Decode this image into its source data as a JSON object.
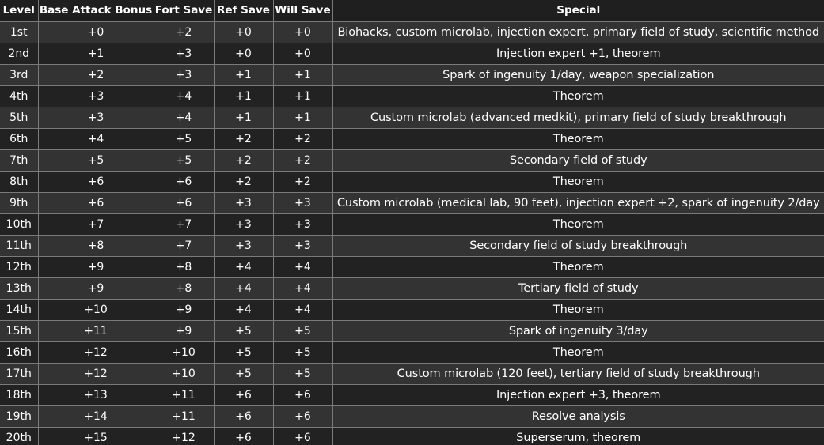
{
  "table": {
    "headers": [
      "Level",
      "Base Attack Bonus",
      "Fort Save",
      "Ref Save",
      "Will Save",
      "Special"
    ],
    "rows": [
      [
        "1st",
        "+0",
        "+2",
        "+0",
        "+0",
        "Biohacks, custom microlab, injection expert, primary field of study, scientific method"
      ],
      [
        "2nd",
        "+1",
        "+3",
        "+0",
        "+0",
        "Injection expert +1, theorem"
      ],
      [
        "3rd",
        "+2",
        "+3",
        "+1",
        "+1",
        "Spark of ingenuity 1/day, weapon specialization"
      ],
      [
        "4th",
        "+3",
        "+4",
        "+1",
        "+1",
        "Theorem"
      ],
      [
        "5th",
        "+3",
        "+4",
        "+1",
        "+1",
        "Custom microlab (advanced medkit), primary field of study breakthrough"
      ],
      [
        "6th",
        "+4",
        "+5",
        "+2",
        "+2",
        "Theorem"
      ],
      [
        "7th",
        "+5",
        "+5",
        "+2",
        "+2",
        "Secondary field of study"
      ],
      [
        "8th",
        "+6",
        "+6",
        "+2",
        "+2",
        "Theorem"
      ],
      [
        "9th",
        "+6",
        "+6",
        "+3",
        "+3",
        "Custom microlab (medical lab, 90 feet), injection expert +2, spark of ingenuity 2/day"
      ],
      [
        "10th",
        "+7",
        "+7",
        "+3",
        "+3",
        "Theorem"
      ],
      [
        "11th",
        "+8",
        "+7",
        "+3",
        "+3",
        "Secondary field of study breakthrough"
      ],
      [
        "12th",
        "+9",
        "+8",
        "+4",
        "+4",
        "Theorem"
      ],
      [
        "13th",
        "+9",
        "+8",
        "+4",
        "+4",
        "Tertiary field of study"
      ],
      [
        "14th",
        "+10",
        "+9",
        "+4",
        "+4",
        "Theorem"
      ],
      [
        "15th",
        "+11",
        "+9",
        "+5",
        "+5",
        "Spark of ingenuity 3/day"
      ],
      [
        "16th",
        "+12",
        "+10",
        "+5",
        "+5",
        "Theorem"
      ],
      [
        "17th",
        "+12",
        "+10",
        "+5",
        "+5",
        "Custom microlab (120 feet), tertiary field of study breakthrough"
      ],
      [
        "18th",
        "+13",
        "+11",
        "+6",
        "+6",
        "Injection expert +3, theorem"
      ],
      [
        "19th",
        "+14",
        "+11",
        "+6",
        "+6",
        "Resolve analysis"
      ],
      [
        "20th",
        "+15",
        "+12",
        "+6",
        "+6",
        "Superserum, theorem"
      ]
    ]
  }
}
